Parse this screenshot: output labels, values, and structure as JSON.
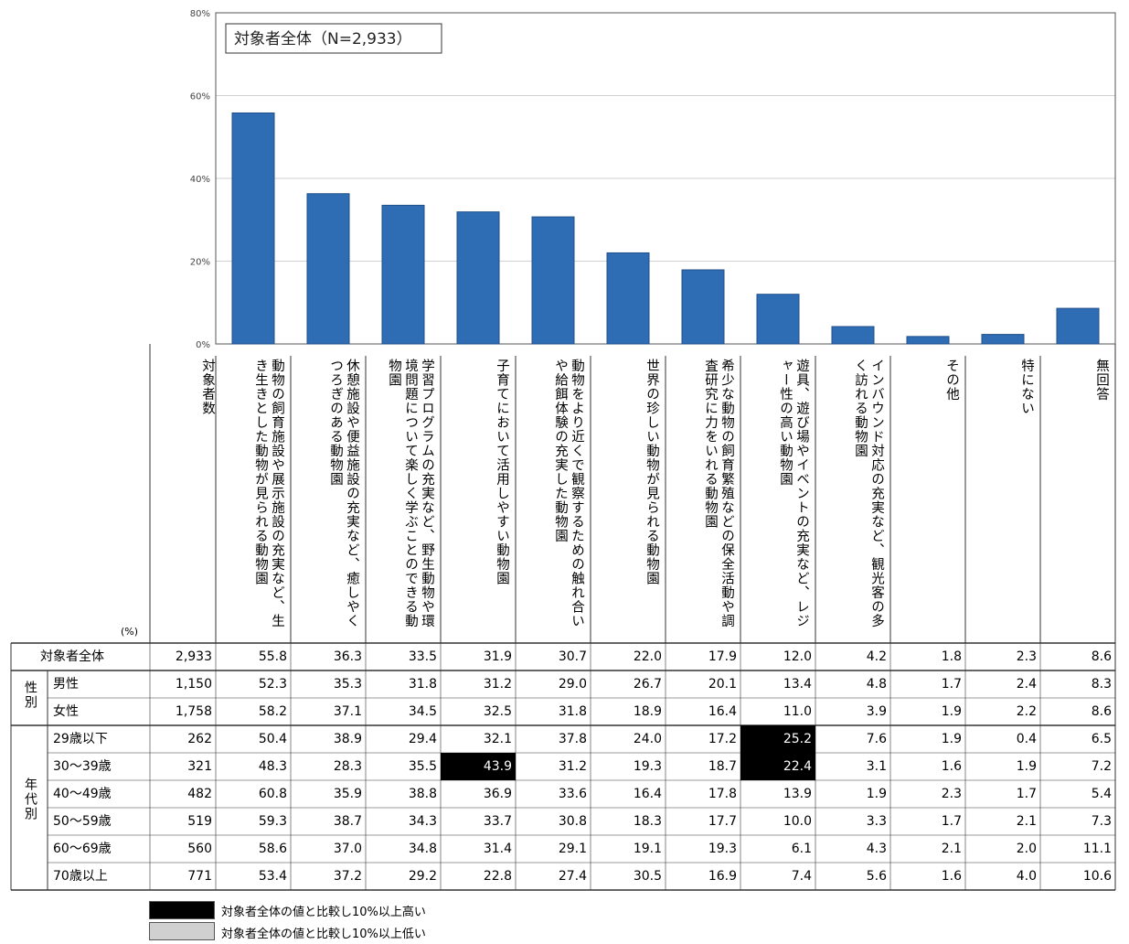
{
  "chart_data": {
    "type": "bar",
    "title": "対象者全体（N=2,933）",
    "yticks": [
      "80%",
      "60%",
      "40%",
      "20%",
      "0%"
    ],
    "ylim": [
      0,
      80
    ],
    "unit_label": "(%)",
    "categories": [
      "動物の飼育施設や展示施設の充実など、生き生きとした動物が見られる動物園",
      "休憩施設や便益施設の充実など、癒しやくつろぎのある動物園",
      "学習プログラムの充実など、野生動物や環境問題について楽しく学ぶことのできる動物園",
      "子育てにおいて活用しやすい動物園",
      "動物をより近くで観察するための触れ合いや給餌体験の充実した動物園",
      "世界の珍しい動物が見られる動物園",
      "希少な動物の飼育繁殖などの保全活動や調査研究に力をいれる動物園",
      "遊具、遊び場やイベントの充実など、レジャー性の高い動物園",
      "インバウンド対応の充実など、観光客の多く訪れる動物園",
      "その他",
      "特にない",
      "無回答"
    ],
    "values": [
      55.8,
      36.3,
      33.5,
      31.9,
      30.7,
      22.0,
      17.9,
      12.0,
      4.2,
      1.8,
      2.3,
      8.6
    ]
  },
  "table": {
    "count_header": "対象者数",
    "groups": {
      "gender": "性別",
      "age": "年代別"
    },
    "rows": [
      {
        "label": "対象者全体",
        "n": "2,933",
        "values": [
          "55.8",
          "36.3",
          "33.5",
          "31.9",
          "30.7",
          "22.0",
          "17.9",
          "12.0",
          "4.2",
          "1.8",
          "2.3",
          "8.6"
        ]
      },
      {
        "label": "男性",
        "n": "1,150",
        "values": [
          "52.3",
          "35.3",
          "31.8",
          "31.2",
          "29.0",
          "26.7",
          "20.1",
          "13.4",
          "4.8",
          "1.7",
          "2.4",
          "8.3"
        ]
      },
      {
        "label": "女性",
        "n": "1,758",
        "values": [
          "58.2",
          "37.1",
          "34.5",
          "32.5",
          "31.8",
          "18.9",
          "16.4",
          "11.0",
          "3.9",
          "1.9",
          "2.2",
          "8.6"
        ]
      },
      {
        "label": "29歳以下",
        "n": "262",
        "values": [
          "50.4",
          "38.9",
          "29.4",
          "32.1",
          "37.8",
          "24.0",
          "17.2",
          "25.2",
          "7.6",
          "1.9",
          "0.4",
          "6.5"
        ]
      },
      {
        "label": "30～39歳",
        "n": "321",
        "values": [
          "48.3",
          "28.3",
          "35.5",
          "43.9",
          "31.2",
          "19.3",
          "18.7",
          "22.4",
          "3.1",
          "1.6",
          "1.9",
          "7.2"
        ]
      },
      {
        "label": "40～49歳",
        "n": "482",
        "values": [
          "60.8",
          "35.9",
          "38.8",
          "36.9",
          "33.6",
          "16.4",
          "17.8",
          "13.9",
          "1.9",
          "2.3",
          "1.7",
          "5.4"
        ]
      },
      {
        "label": "50～59歳",
        "n": "519",
        "values": [
          "59.3",
          "38.7",
          "34.3",
          "33.7",
          "30.8",
          "18.3",
          "17.7",
          "10.0",
          "3.3",
          "1.7",
          "2.1",
          "7.3"
        ]
      },
      {
        "label": "60～69歳",
        "n": "560",
        "values": [
          "58.6",
          "37.0",
          "34.8",
          "31.4",
          "29.1",
          "19.1",
          "19.3",
          "6.1",
          "4.3",
          "2.1",
          "2.0",
          "11.1"
        ]
      },
      {
        "label": "70歳以上",
        "n": "771",
        "values": [
          "53.4",
          "37.2",
          "29.2",
          "22.8",
          "27.4",
          "30.5",
          "16.9",
          "7.4",
          "5.6",
          "1.6",
          "4.0",
          "10.6"
        ]
      }
    ],
    "highlighted_high": [
      [
        3,
        7
      ],
      [
        4,
        3
      ],
      [
        4,
        7
      ]
    ]
  },
  "legend": {
    "high_label": "対象者全体の値と比較し10%以上高い",
    "low_label": "対象者全体の値と比較し10%以上低い",
    "high_color": "#000000",
    "low_color": "#d0d0d0"
  },
  "colors": {
    "bar": "#2e6db4"
  }
}
